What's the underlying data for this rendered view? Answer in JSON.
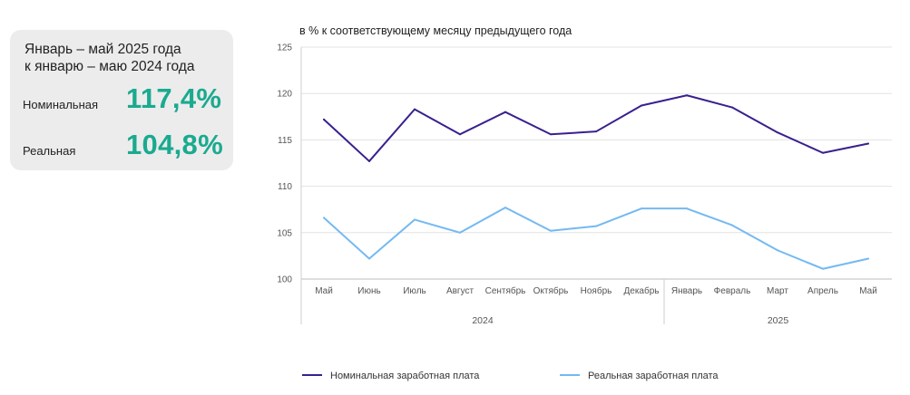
{
  "summary": {
    "title_line1": "Январь – май 2025 года",
    "title_line2": "к январю – маю 2024 года",
    "nominal_label": "Номинальная",
    "nominal_value": "117,4%",
    "real_label": "Реальная",
    "real_value": "104,8%",
    "accent_color": "#1aaa8f"
  },
  "chart_data": {
    "type": "line",
    "title": "в % к соответствующему месяцу предыдущего года",
    "categories": [
      "Май",
      "Июнь",
      "Июль",
      "Август",
      "Сентябрь",
      "Октябрь",
      "Ноябрь",
      "Декабрь",
      "Январь",
      "Февраль",
      "Март",
      "Апрель",
      "Май"
    ],
    "year_groups": [
      {
        "label": "2024",
        "start": 0,
        "end": 7
      },
      {
        "label": "2025",
        "start": 8,
        "end": 12
      }
    ],
    "ylim": [
      100,
      125
    ],
    "yticks": [
      100,
      105,
      110,
      115,
      120,
      125
    ],
    "grid": true,
    "legend_position": "bottom",
    "series": [
      {
        "name": "Номинальная заработная плата",
        "color": "#3a1f8f",
        "values": [
          117.2,
          112.7,
          118.3,
          115.6,
          118.0,
          115.6,
          115.9,
          118.7,
          119.8,
          118.5,
          115.8,
          113.6,
          114.6
        ]
      },
      {
        "name": "Реальная заработная плата",
        "color": "#74b9f2",
        "values": [
          106.6,
          102.2,
          106.4,
          105.0,
          107.7,
          105.2,
          105.7,
          107.6,
          107.6,
          105.8,
          103.1,
          101.1,
          102.2
        ]
      }
    ]
  }
}
